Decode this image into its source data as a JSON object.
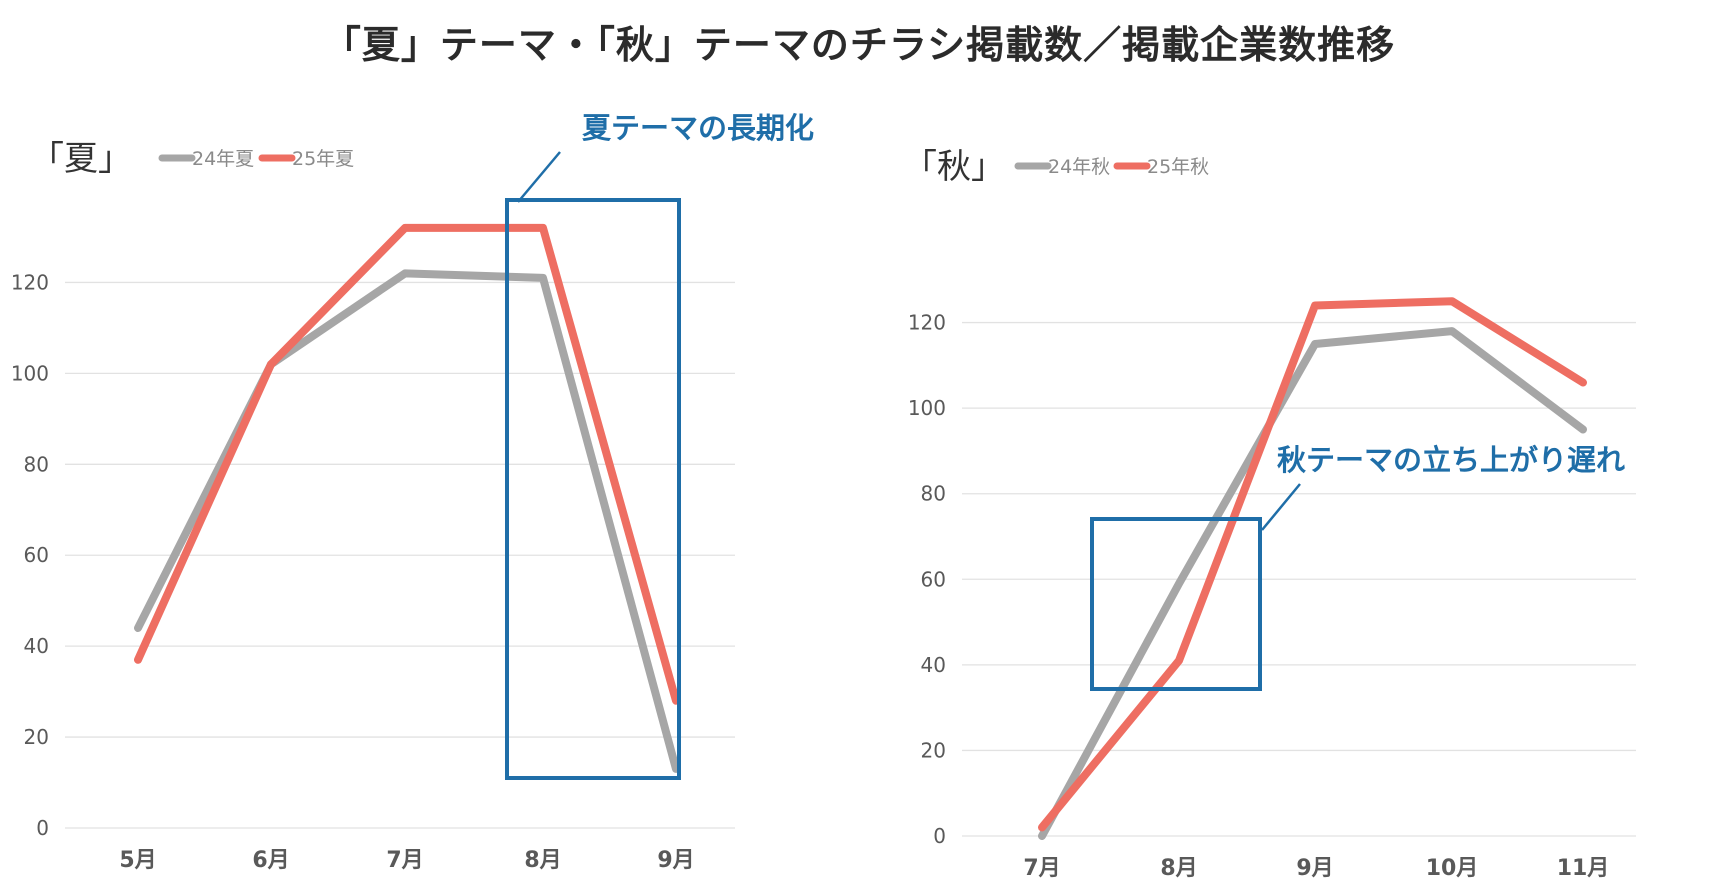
{
  "title": "「夏」テーマ・「秋」テーマのチラシ掲載数／掲載企業数推移",
  "colors": {
    "series_2024": "#a6a6a6",
    "series_2025": "#ee6e62",
    "callout": "#1f6ea8",
    "grid": "#e2e2e2",
    "axis_text": "#595959"
  },
  "chart_data": [
    {
      "type": "line",
      "title": "「夏」",
      "categories": [
        "5月",
        "6月",
        "7月",
        "8月",
        "9月"
      ],
      "series": [
        {
          "name": "24年夏",
          "values": [
            44,
            102,
            122,
            121,
            13
          ]
        },
        {
          "name": "25年夏",
          "values": [
            37,
            102,
            132,
            132,
            28
          ]
        }
      ],
      "ylim": [
        0,
        130
      ],
      "yticks": [
        0,
        20,
        40,
        60,
        80,
        100,
        120
      ],
      "grid": true,
      "legend": "top-left",
      "annotation": {
        "text": "夏テーマの長期化",
        "highlight": "8月–9月"
      }
    },
    {
      "type": "line",
      "title": "「秋」",
      "categories": [
        "7月",
        "8月",
        "9月",
        "10月",
        "11月"
      ],
      "series": [
        {
          "name": "24年秋",
          "values": [
            0,
            59,
            115,
            118,
            95
          ]
        },
        {
          "name": "25年秋",
          "values": [
            2,
            41,
            124,
            125,
            106
          ]
        }
      ],
      "ylim": [
        0,
        140
      ],
      "yticks": [
        0,
        20,
        40,
        60,
        80,
        100,
        120
      ],
      "grid": true,
      "legend": "top-left",
      "annotation": {
        "text": "秋テーマの立ち上がり遅れ",
        "highlight": "8月"
      }
    }
  ]
}
